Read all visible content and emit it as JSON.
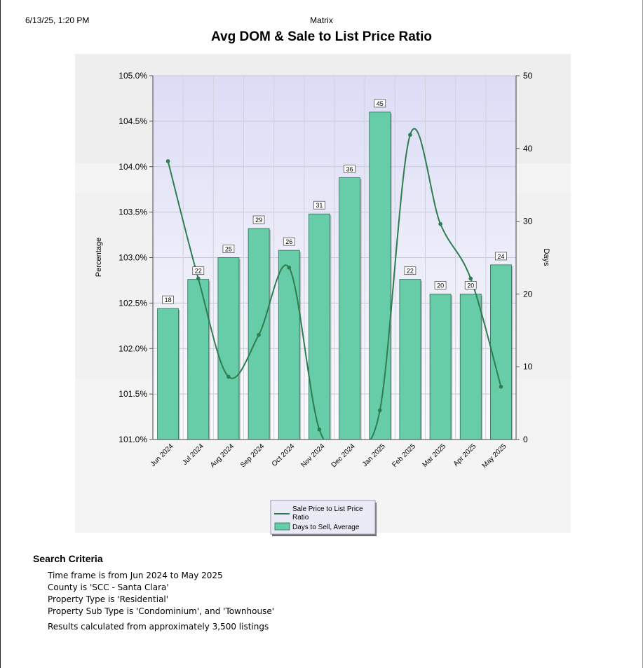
{
  "header": {
    "print_timestamp": "6/13/25, 1:20 PM",
    "app_name": "Matrix"
  },
  "chart_data": {
    "type": "bar+line",
    "title": "Avg DOM & Sale to List Price Ratio",
    "categories": [
      "Jun 2024",
      "Jul 2024",
      "Aug 2024",
      "Sep 2024",
      "Oct 2024",
      "Nov 2024",
      "Dec 2024",
      "Jan 2025",
      "Feb 2025",
      "Mar 2025",
      "Apr 2025",
      "May 2025"
    ],
    "y_left": {
      "label": "Percentage",
      "range": [
        101.0,
        105.0
      ],
      "ticks": [
        "105.0%",
        "104.5%",
        "104.0%",
        "103.5%",
        "103.0%",
        "102.5%",
        "102.0%",
        "101.5%",
        "101.0%"
      ]
    },
    "y_right": {
      "label": "Days",
      "range": [
        0,
        50
      ],
      "ticks": [
        "50",
        "40",
        "30",
        "20",
        "10",
        "0"
      ]
    },
    "series": [
      {
        "name": "Sale Price to List Price Ratio",
        "kind": "line",
        "axis": "left",
        "color": "#2e7d4f",
        "values": [
          104.06,
          102.77,
          101.69,
          102.15,
          102.89,
          101.11,
          100.97,
          101.32,
          104.35,
          103.37,
          102.77,
          101.58
        ]
      },
      {
        "name": "Days to Sell, Average",
        "kind": "bar",
        "axis": "right",
        "color": "#66cda8",
        "values": [
          18,
          22,
          25,
          29,
          26,
          31,
          36,
          45,
          22,
          20,
          20,
          24
        ],
        "data_labels": [
          "18",
          "22",
          "25",
          "29",
          "26",
          "31",
          "36",
          "45",
          "22",
          "20",
          "20",
          "24"
        ]
      }
    ],
    "legend_position": "bottom-center",
    "grid": true
  },
  "search_criteria": {
    "title": "Search Criteria",
    "lines": [
      "Time frame is from Jun 2024 to May 2025",
      "County is 'SCC - Santa Clara'",
      "Property Type is 'Residential'",
      "Property Sub Type is 'Condominium', and 'Townhouse'"
    ],
    "results": "Results calculated from approximately 3,500 listings"
  }
}
